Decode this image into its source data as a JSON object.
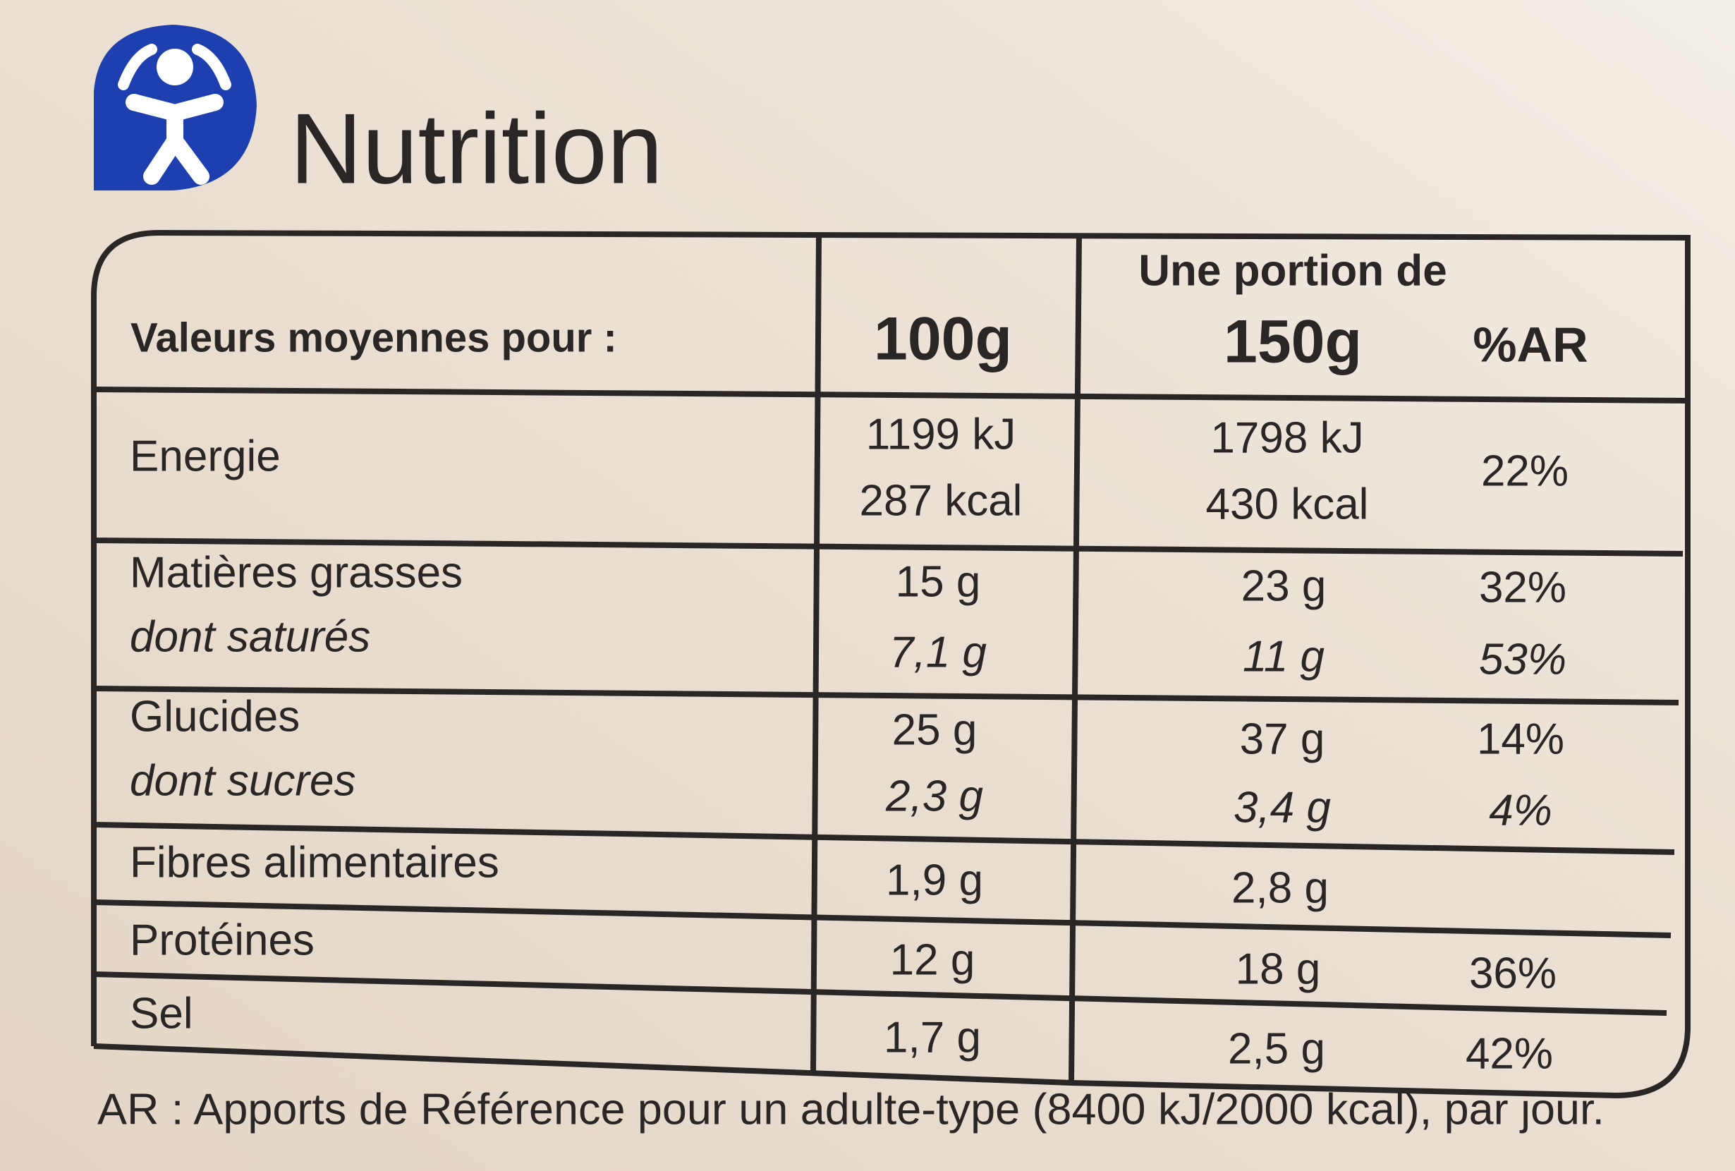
{
  "header": {
    "title": "Nutrition"
  },
  "table": {
    "header": {
      "label": "Valeurs moyennes pour :",
      "per100": "100g",
      "portion_caption": "Une portion de",
      "portion": "150g",
      "ar": "%AR"
    },
    "rows": [
      {
        "label": "Energie",
        "per100": [
          "1199 kJ",
          "287 kcal"
        ],
        "portion": [
          "1798 kJ",
          "430 kcal"
        ],
        "ar": "22%"
      },
      {
        "label": "Matières grasses",
        "per100": "15 g",
        "portion": "23 g",
        "ar": "32%"
      },
      {
        "label": "dont saturés",
        "per100": "7,1 g",
        "portion": "11 g",
        "ar": "53%"
      },
      {
        "label": "Glucides",
        "per100": "25 g",
        "portion": "37 g",
        "ar": "14%"
      },
      {
        "label": "dont sucres",
        "per100": "2,3 g",
        "portion": "3,4 g",
        "ar": "4%"
      },
      {
        "label": "Fibres alimentaires",
        "per100": "1,9 g",
        "portion": "2,8 g"
      },
      {
        "label": "Protéines",
        "per100": "12 g",
        "portion": "18 g",
        "ar": "36%"
      },
      {
        "label": "Sel",
        "per100": "1,7 g",
        "portion": "2,5 g",
        "ar": "42%"
      }
    ]
  },
  "footnote": "AR : Apports de Référence pour un adulte-type (8400 kJ/2000 kcal), par jour."
}
